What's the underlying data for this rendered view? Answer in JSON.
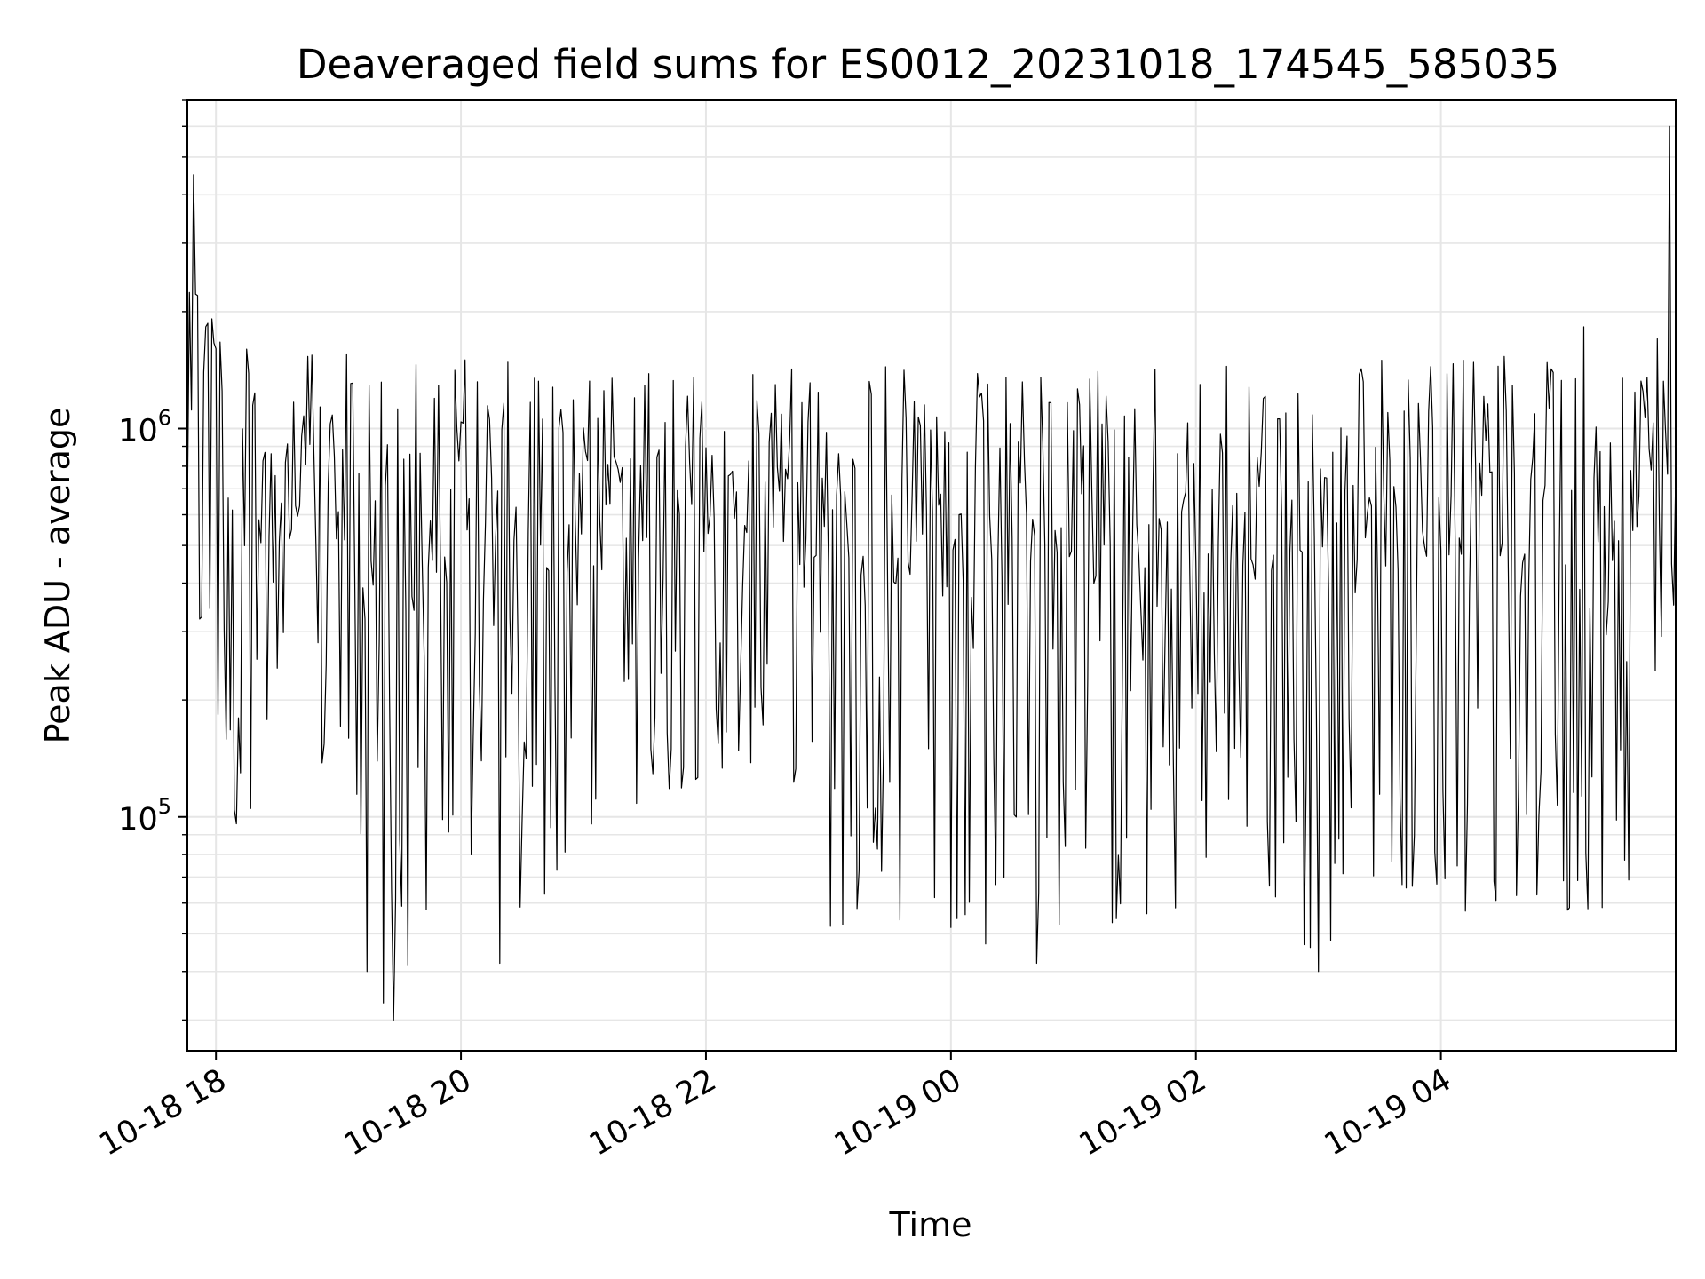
{
  "chart_data": {
    "type": "line",
    "title": "Deaveraged field sums for ES0012_20231018_174545_585035",
    "xlabel": "Time",
    "ylabel": "Peak ADU - average",
    "yscale": "log",
    "xlim": [
      "2023-10-18 17:46",
      "2023-10-19 05:55"
    ],
    "ylim": [
      25000,
      7000000
    ],
    "grid": true,
    "line_color": "#000000",
    "grid_color": "#e6e6e6",
    "x_ticks": [
      {
        "value": "2023-10-18 18:00",
        "label": "10-18 18"
      },
      {
        "value": "2023-10-18 20:00",
        "label": "10-18 20"
      },
      {
        "value": "2023-10-18 22:00",
        "label": "10-18 22"
      },
      {
        "value": "2023-10-19 00:00",
        "label": "10-19 00"
      },
      {
        "value": "2023-10-19 02:00",
        "label": "10-19 02"
      },
      {
        "value": "2023-10-19 04:00",
        "label": "10-19 04"
      }
    ],
    "y_ticks": [
      {
        "value": 100000,
        "base": "10",
        "exp": "5"
      },
      {
        "value": 1000000,
        "base": "10",
        "exp": "6"
      }
    ],
    "series": [
      {
        "sample_interval_minutes": 1,
        "x": [
          "2023-10-18 17:46",
          "2023-10-18 17:50",
          "2023-10-18 18:10",
          "2023-10-18 18:30",
          "2023-10-18 19:00",
          "2023-10-18 19:15",
          "2023-10-18 19:25",
          "2023-10-18 19:40",
          "2023-10-18 20:00",
          "2023-10-18 20:20",
          "2023-10-18 20:40",
          "2023-10-18 21:00",
          "2023-10-18 21:30",
          "2023-10-18 22:00",
          "2023-10-18 22:30",
          "2023-10-18 22:45",
          "2023-10-18 23:00",
          "2023-10-18 23:30",
          "2023-10-19 00:00",
          "2023-10-19 00:30",
          "2023-10-19 01:00",
          "2023-10-19 01:30",
          "2023-10-19 01:45",
          "2023-10-19 02:00",
          "2023-10-19 02:30",
          "2023-10-19 03:00",
          "2023-10-19 03:30",
          "2023-10-19 04:00",
          "2023-10-19 04:30",
          "2023-10-19 05:00",
          "2023-10-19 05:30",
          "2023-10-19 05:55"
        ],
        "max": [
          1800000,
          4500000,
          1700000,
          1500000,
          1600000,
          1500000,
          1800000,
          1500000,
          1600000,
          1500000,
          1450000,
          1400000,
          1400000,
          1350000,
          1400000,
          1700000,
          1500000,
          1500000,
          1500000,
          1400000,
          1500000,
          1500000,
          1500000,
          1450000,
          1450000,
          1500000,
          1600000,
          1500000,
          1600000,
          1800000,
          1900000,
          1800000
        ],
        "min": [
          500000,
          300000,
          90000,
          140000,
          120000,
          40000,
          30000,
          50000,
          85000,
          45000,
          60000,
          90000,
          100000,
          130000,
          140000,
          120000,
          50000,
          55000,
          50000,
          45000,
          55000,
          50000,
          55000,
          60000,
          70000,
          40000,
          75000,
          55000,
          60000,
          55000,
          60000,
          300000
        ],
        "spikes": [
          {
            "x": "2023-10-18 17:49",
            "value": 4500000
          },
          {
            "x": "2023-10-18 17:51",
            "value": 2200000
          },
          {
            "x": "2023-10-18 19:14",
            "value": 40000
          },
          {
            "x": "2023-10-18 19:27",
            "value": 30000
          },
          {
            "x": "2023-10-18 20:19",
            "value": 42000
          },
          {
            "x": "2023-10-19 00:42",
            "value": 42000
          },
          {
            "x": "2023-10-19 03:00",
            "value": 40000
          },
          {
            "x": "2023-10-19 05:52",
            "value": 6000000
          }
        ]
      }
    ]
  }
}
